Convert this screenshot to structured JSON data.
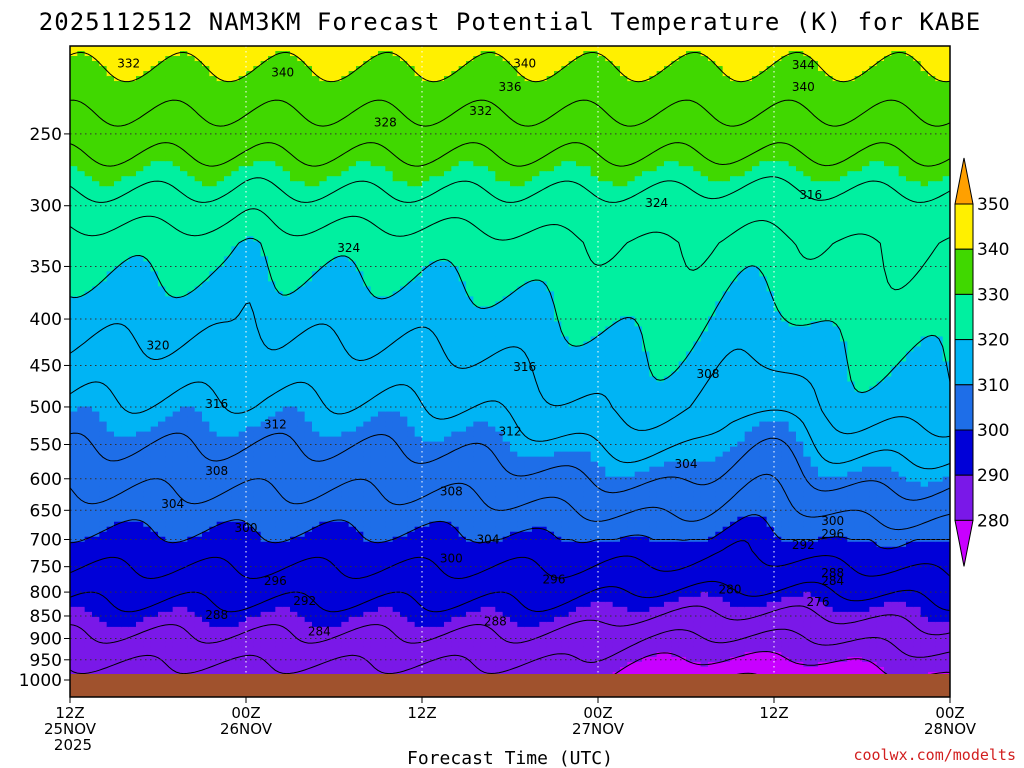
{
  "chart_data": {
    "type": "heatmap",
    "title": "2025112512 NAM3KM Forecast Potential Temperature (K) for KABE",
    "xlabel": "Forecast Time (UTC)",
    "ylabel": "",
    "credit": "coolwx.com/modelts",
    "y_ticks": [
      250,
      300,
      350,
      400,
      450,
      500,
      550,
      600,
      650,
      700,
      750,
      800,
      850,
      900,
      950,
      1000
    ],
    "ylim": [
      200,
      1000
    ],
    "x_ticks": [
      {
        "hours": 0,
        "line1": "12Z",
        "line2": "25NOV",
        "line3": "2025"
      },
      {
        "hours": 12,
        "line1": "00Z",
        "line2": "26NOV",
        "line3": ""
      },
      {
        "hours": 24,
        "line1": "12Z",
        "line2": "",
        "line3": ""
      },
      {
        "hours": 36,
        "line1": "00Z",
        "line2": "27NOV",
        "line3": ""
      },
      {
        "hours": 48,
        "line1": "12Z",
        "line2": "",
        "line3": ""
      },
      {
        "hours": 60,
        "line1": "00Z",
        "line2": "28NOV",
        "line3": ""
      }
    ],
    "xlim": [
      0,
      60
    ],
    "colorbar": {
      "levels": [
        280,
        290,
        300,
        310,
        320,
        330,
        340,
        350
      ],
      "colors": [
        "#c800ff",
        "#7a18e8",
        "#0000d8",
        "#1e6ee8",
        "#00b4f4",
        "#00f0a0",
        "#40d800",
        "#fff000",
        "#ffa000"
      ],
      "units": "K"
    },
    "contour_interval": 4,
    "series": [
      {
        "name": "theta",
        "x_hours": [
          0,
          3,
          6,
          9,
          12,
          15,
          18,
          21,
          24,
          27,
          30,
          33,
          36,
          39,
          42,
          45,
          48,
          51,
          54,
          57,
          60
        ]
      }
    ],
    "contour_labels": [
      {
        "text": "332",
        "hours": 4,
        "pres": 209
      },
      {
        "text": "340",
        "hours": 14.5,
        "pres": 214
      },
      {
        "text": "340",
        "hours": 31,
        "pres": 209
      },
      {
        "text": "336",
        "hours": 30,
        "pres": 222
      },
      {
        "text": "332",
        "hours": 28,
        "pres": 236
      },
      {
        "text": "328",
        "hours": 21.5,
        "pres": 243
      },
      {
        "text": "344",
        "hours": 50,
        "pres": 210
      },
      {
        "text": "340",
        "hours": 50,
        "pres": 222
      },
      {
        "text": "324",
        "hours": 40,
        "pres": 298
      },
      {
        "text": "316",
        "hours": 50.5,
        "pres": 292
      },
      {
        "text": "324",
        "hours": 19,
        "pres": 334
      },
      {
        "text": "320",
        "hours": 6,
        "pres": 428
      },
      {
        "text": "316",
        "hours": 31,
        "pres": 452
      },
      {
        "text": "308",
        "hours": 43.5,
        "pres": 460
      },
      {
        "text": "316",
        "hours": 10,
        "pres": 496
      },
      {
        "text": "312",
        "hours": 14,
        "pres": 523
      },
      {
        "text": "312",
        "hours": 30,
        "pres": 532
      },
      {
        "text": "304",
        "hours": 42,
        "pres": 578
      },
      {
        "text": "308",
        "hours": 10,
        "pres": 588
      },
      {
        "text": "308",
        "hours": 26,
        "pres": 620
      },
      {
        "text": "304",
        "hours": 7,
        "pres": 640
      },
      {
        "text": "300",
        "hours": 12,
        "pres": 680
      },
      {
        "text": "304",
        "hours": 28.5,
        "pres": 700
      },
      {
        "text": "300",
        "hours": 52,
        "pres": 668
      },
      {
        "text": "296",
        "hours": 52,
        "pres": 690
      },
      {
        "text": "292",
        "hours": 50,
        "pres": 710
      },
      {
        "text": "300",
        "hours": 26,
        "pres": 735
      },
      {
        "text": "296",
        "hours": 14,
        "pres": 778
      },
      {
        "text": "296",
        "hours": 33,
        "pres": 775
      },
      {
        "text": "288",
        "hours": 52,
        "pres": 762
      },
      {
        "text": "284",
        "hours": 52,
        "pres": 778
      },
      {
        "text": "280",
        "hours": 45,
        "pres": 795
      },
      {
        "text": "292",
        "hours": 16,
        "pres": 818
      },
      {
        "text": "276",
        "hours": 51,
        "pres": 820
      },
      {
        "text": "288",
        "hours": 10,
        "pres": 848
      },
      {
        "text": "288",
        "hours": 29,
        "pres": 862
      },
      {
        "text": "284",
        "hours": 17,
        "pres": 884
      }
    ]
  }
}
